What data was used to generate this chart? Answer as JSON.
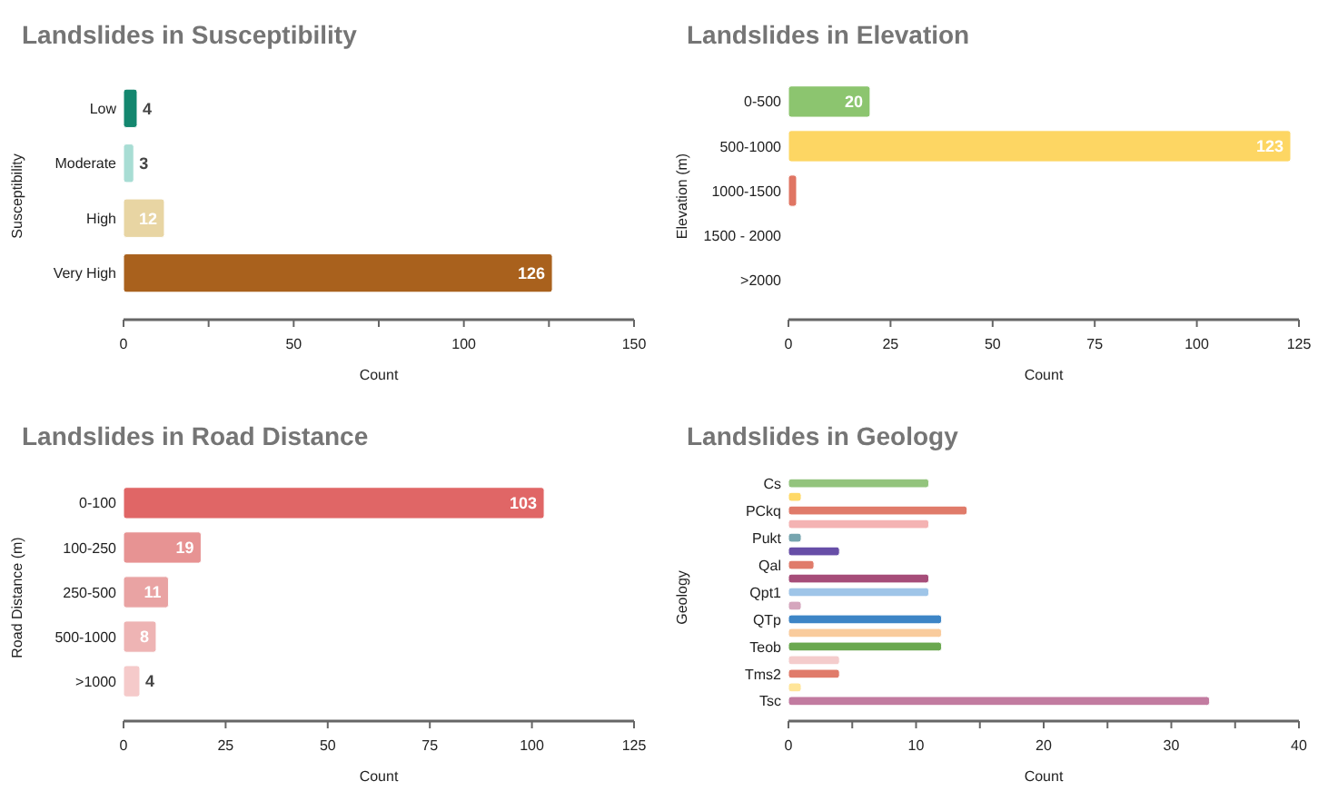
{
  "chart_data": [
    {
      "type": "bar",
      "orientation": "horizontal",
      "title": "Landslides in Susceptibility",
      "xlabel": "Count",
      "ylabel": "Susceptibility",
      "categories": [
        "Low",
        "Moderate",
        "High",
        "Very High"
      ],
      "values": [
        4,
        3,
        12,
        126
      ],
      "colors": [
        "#14876f",
        "#a8ddd4",
        "#e8d5a3",
        "#a9611d"
      ],
      "xlim": [
        0,
        150
      ],
      "xticks": [
        0,
        {
          "value": 25,
          "label": null
        },
        50,
        {
          "value": 75,
          "label": null
        },
        100,
        {
          "value": 125,
          "label": null
        },
        150
      ],
      "data_labels": true,
      "grid": false
    },
    {
      "type": "bar",
      "orientation": "horizontal",
      "title": "Landslides in Elevation",
      "xlabel": "Count",
      "ylabel": "Elevation (m)",
      "categories": [
        "0-500",
        "500-1000",
        "1000-1500",
        "1500 - 2000",
        ">2000"
      ],
      "values": [
        20,
        123,
        2,
        0,
        0
      ],
      "colors": [
        "#8cc56f",
        "#fdd663",
        "#e07563",
        "#cccccc",
        "#cccccc"
      ],
      "value_labels": [
        "20",
        "123",
        null,
        null,
        null
      ],
      "xlim": [
        0,
        125
      ],
      "xticks": [
        0,
        25,
        50,
        75,
        100,
        125
      ],
      "grid": false
    },
    {
      "type": "bar",
      "orientation": "horizontal",
      "title": "Landslides in Road Distance",
      "xlabel": "Count",
      "ylabel": "Road Distance (m)",
      "categories": [
        "0-100",
        "100-250",
        "250-500",
        "500-1000",
        ">1000"
      ],
      "values": [
        103,
        19,
        11,
        8,
        4
      ],
      "colors": [
        "#e06666",
        "#e79393",
        "#e9a3a3",
        "#eeb4b4",
        "#f5caca"
      ],
      "xlim": [
        0,
        125
      ],
      "xticks": [
        0,
        25,
        50,
        75,
        100,
        125
      ],
      "data_labels": true,
      "grid": false
    },
    {
      "type": "bar",
      "orientation": "horizontal",
      "title": "Landslides in Geology",
      "xlabel": "Count",
      "ylabel": "Geology",
      "categories": [
        "Cs",
        null,
        "PCkq",
        null,
        "Pukt",
        null,
        "Qal",
        null,
        "Qpt1",
        null,
        "QTp",
        null,
        "Teob",
        null,
        "Tms2",
        null,
        "Tsc"
      ],
      "values": [
        11,
        1,
        14,
        11,
        1,
        4,
        2,
        11,
        11,
        1,
        12,
        12,
        12,
        4,
        4,
        1,
        33
      ],
      "colors": [
        "#93c47d",
        "#ffd966",
        "#e07b6a",
        "#f4b3b3",
        "#76a5af",
        "#674ea7",
        "#e07b6a",
        "#a64d79",
        "#9fc5e8",
        "#d5a6bd",
        "#3d85c6",
        "#f9cb9c",
        "#6aa84f",
        "#f4cccc",
        "#e07b6a",
        "#ffe599",
        "#c27ba0"
      ],
      "xlim": [
        0,
        40
      ],
      "xticks": [
        0,
        {
          "value": 5,
          "label": null
        },
        10,
        {
          "value": 15,
          "label": null
        },
        20,
        {
          "value": 25,
          "label": null
        },
        30,
        {
          "value": 35,
          "label": null
        },
        40
      ],
      "grid": false
    }
  ]
}
